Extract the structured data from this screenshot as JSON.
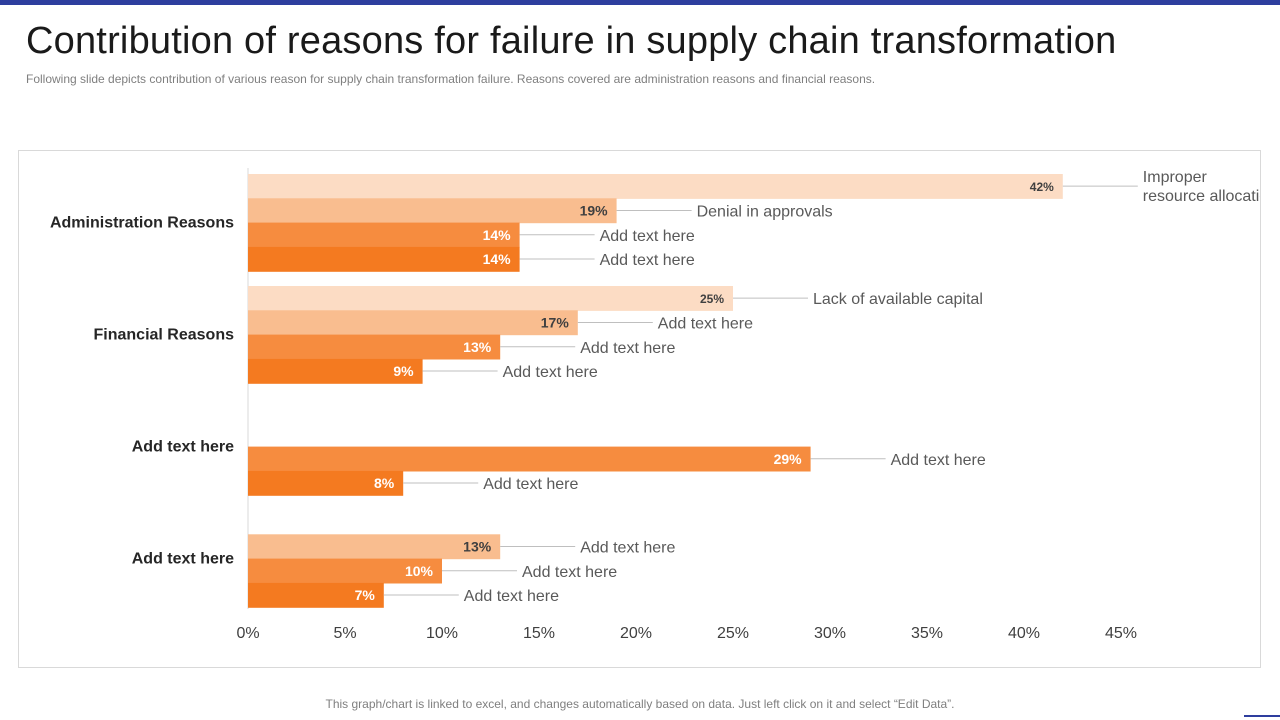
{
  "page": {
    "title": "Contribution of reasons for failure in supply chain transformation",
    "subtitle": "Following slide depicts contribution of various  reason for supply chain transformation  failure. Reasons covered  are administration reasons and financial reasons.",
    "footer": "This graph/chart is linked to excel, and changes automatically based on data. Just left click on it and select “Edit Data”."
  },
  "colors": {
    "accent": "#2e3e9e",
    "bar_shades": [
      "#fcdcc4",
      "#f9bd8f",
      "#f68c3f",
      "#f47a20"
    ],
    "value_dark": "#404040",
    "value_light": "#ffffff",
    "annotation_text": "#595959",
    "leader_line": "#bfbfbf",
    "axis_line": "#d9d9d9",
    "category_text": "#262626",
    "tick_text": "#404040"
  },
  "chart_data": {
    "type": "bar",
    "orientation": "horizontal",
    "xlim": [
      0,
      45
    ],
    "x_ticks": [
      "0%",
      "5%",
      "10%",
      "15%",
      "20%",
      "25%",
      "30%",
      "35%",
      "40%",
      "45%"
    ],
    "value_suffix": "%",
    "grid": false,
    "legend": "none",
    "groups": [
      {
        "label": "Administration Reasons",
        "bars": [
          {
            "slot": 0,
            "value": 42,
            "label": "42%",
            "annotation": [
              "Improper",
              "resource allocation"
            ]
          },
          {
            "slot": 1,
            "value": 19,
            "label": "19%",
            "annotation": [
              "Denial in approvals"
            ]
          },
          {
            "slot": 2,
            "value": 14,
            "label": "14%",
            "annotation": [
              "Add text here"
            ]
          },
          {
            "slot": 3,
            "value": 14,
            "label": "14%",
            "annotation": [
              "Add text here"
            ]
          }
        ]
      },
      {
        "label": "Financial Reasons",
        "bars": [
          {
            "slot": 0,
            "value": 25,
            "label": "25%",
            "annotation": [
              "Lack of available capital"
            ]
          },
          {
            "slot": 1,
            "value": 17,
            "label": "17%",
            "annotation": [
              "Add text here"
            ]
          },
          {
            "slot": 2,
            "value": 13,
            "label": "13%",
            "annotation": [
              "Add text here"
            ]
          },
          {
            "slot": 3,
            "value": 9,
            "label": "9%",
            "annotation": [
              "Add text here"
            ]
          }
        ]
      },
      {
        "label": "Add text here",
        "bars": [
          {
            "slot": 2,
            "value": 29,
            "label": "29%",
            "annotation": [
              "Add text here"
            ]
          },
          {
            "slot": 3,
            "value": 8,
            "label": "8%",
            "annotation": [
              "Add text here"
            ]
          }
        ]
      },
      {
        "label": "Add text here",
        "bars": [
          {
            "slot": 1,
            "value": 13,
            "label": "13%",
            "annotation": [
              "Add text here"
            ]
          },
          {
            "slot": 2,
            "value": 10,
            "label": "10%",
            "annotation": [
              "Add text here"
            ]
          },
          {
            "slot": 3,
            "value": 7,
            "label": "7%",
            "annotation": [
              "Add text here"
            ]
          }
        ]
      }
    ]
  }
}
